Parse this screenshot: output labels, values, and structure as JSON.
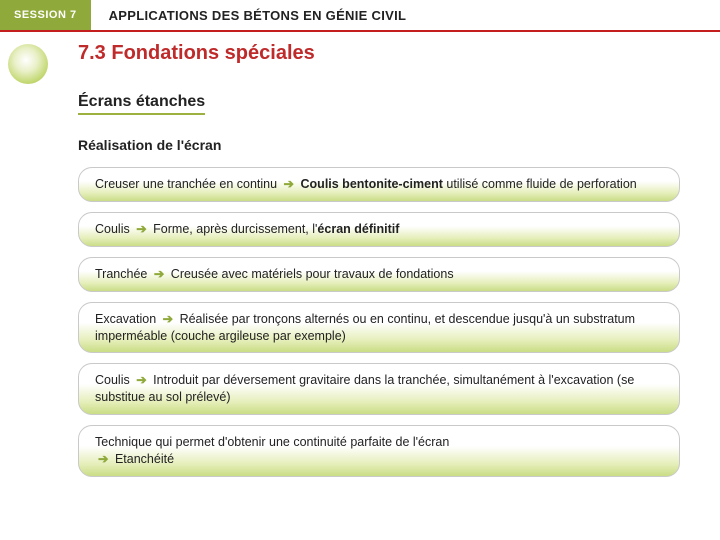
{
  "header": {
    "session_label": "SESSION 7",
    "title": "APPLICATIONS DES BÉTONS EN GÉNIE CIVIL"
  },
  "content": {
    "section_title": "7.3 Fondations spéciales",
    "sub1": "Écrans étanches",
    "sub2": "Réalisation de l'écran",
    "arrow": "➔",
    "cards": [
      {
        "pre": "Creuser une tranchée en continu ",
        "bold_after_arrow": "Coulis bentonite-ciment",
        "post": " utilisé comme fluide de perforation"
      },
      {
        "pre": "Coulis  ",
        "mid": " Forme, après durcissement, l'",
        "bold_tail": "écran définitif"
      },
      {
        "pre": "Tranchée ",
        "post": " Creusée avec matériels pour travaux de fondations"
      },
      {
        "pre": "Excavation ",
        "post": " Réalisée par tronçons alternés ou en continu, et descendue jusqu'à un substratum imperméable (couche argileuse par exemple)"
      },
      {
        "pre": "Coulis ",
        "post": " Introduit par déversement gravitaire dans la tranchée, simultanément à l'excavation (se substitue au sol prélevé)"
      },
      {
        "pre_full": "Technique qui permet d'obtenir une continuité parfaite de l'écran",
        "post": " Etanchéité"
      }
    ]
  },
  "style": {
    "accent_green": "#8fa93a",
    "accent_red": "#bf2a2a",
    "header_rule": "#c41e1e"
  }
}
